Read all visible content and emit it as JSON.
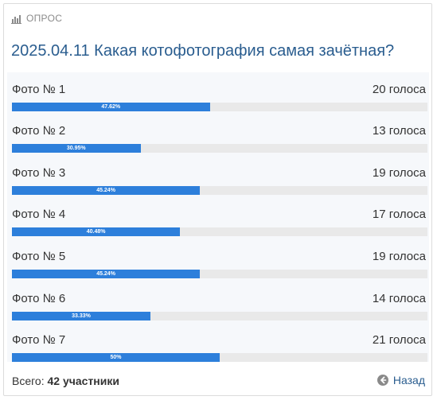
{
  "header": {
    "label": "ОПРОС"
  },
  "poll": {
    "title": "2025.04.11 Какая котофотография самая зачётная?",
    "options": [
      {
        "name": "Фото № 1",
        "votes": "20 голоса",
        "percent_label": "47.62%",
        "percent": 47.62
      },
      {
        "name": "Фото № 2",
        "votes": "13 голоса",
        "percent_label": "30.95%",
        "percent": 30.95
      },
      {
        "name": "Фото № 3",
        "votes": "19 голоса",
        "percent_label": "45.24%",
        "percent": 45.24
      },
      {
        "name": "Фото № 4",
        "votes": "17 голоса",
        "percent_label": "40.48%",
        "percent": 40.48
      },
      {
        "name": "Фото № 5",
        "votes": "19 голоса",
        "percent_label": "45.24%",
        "percent": 45.24
      },
      {
        "name": "Фото № 6",
        "votes": "14 голоса",
        "percent_label": "33.33%",
        "percent": 33.33
      },
      {
        "name": "Фото № 7",
        "votes": "21 голоса",
        "percent_label": "50%",
        "percent": 50
      }
    ]
  },
  "footer": {
    "total_label": "Всего:",
    "total_value": "42 участники",
    "back_label": "Назад"
  },
  "colors": {
    "accent": "#2d7fdb",
    "title": "#2a5d8f",
    "track": "#e9e9e9"
  }
}
